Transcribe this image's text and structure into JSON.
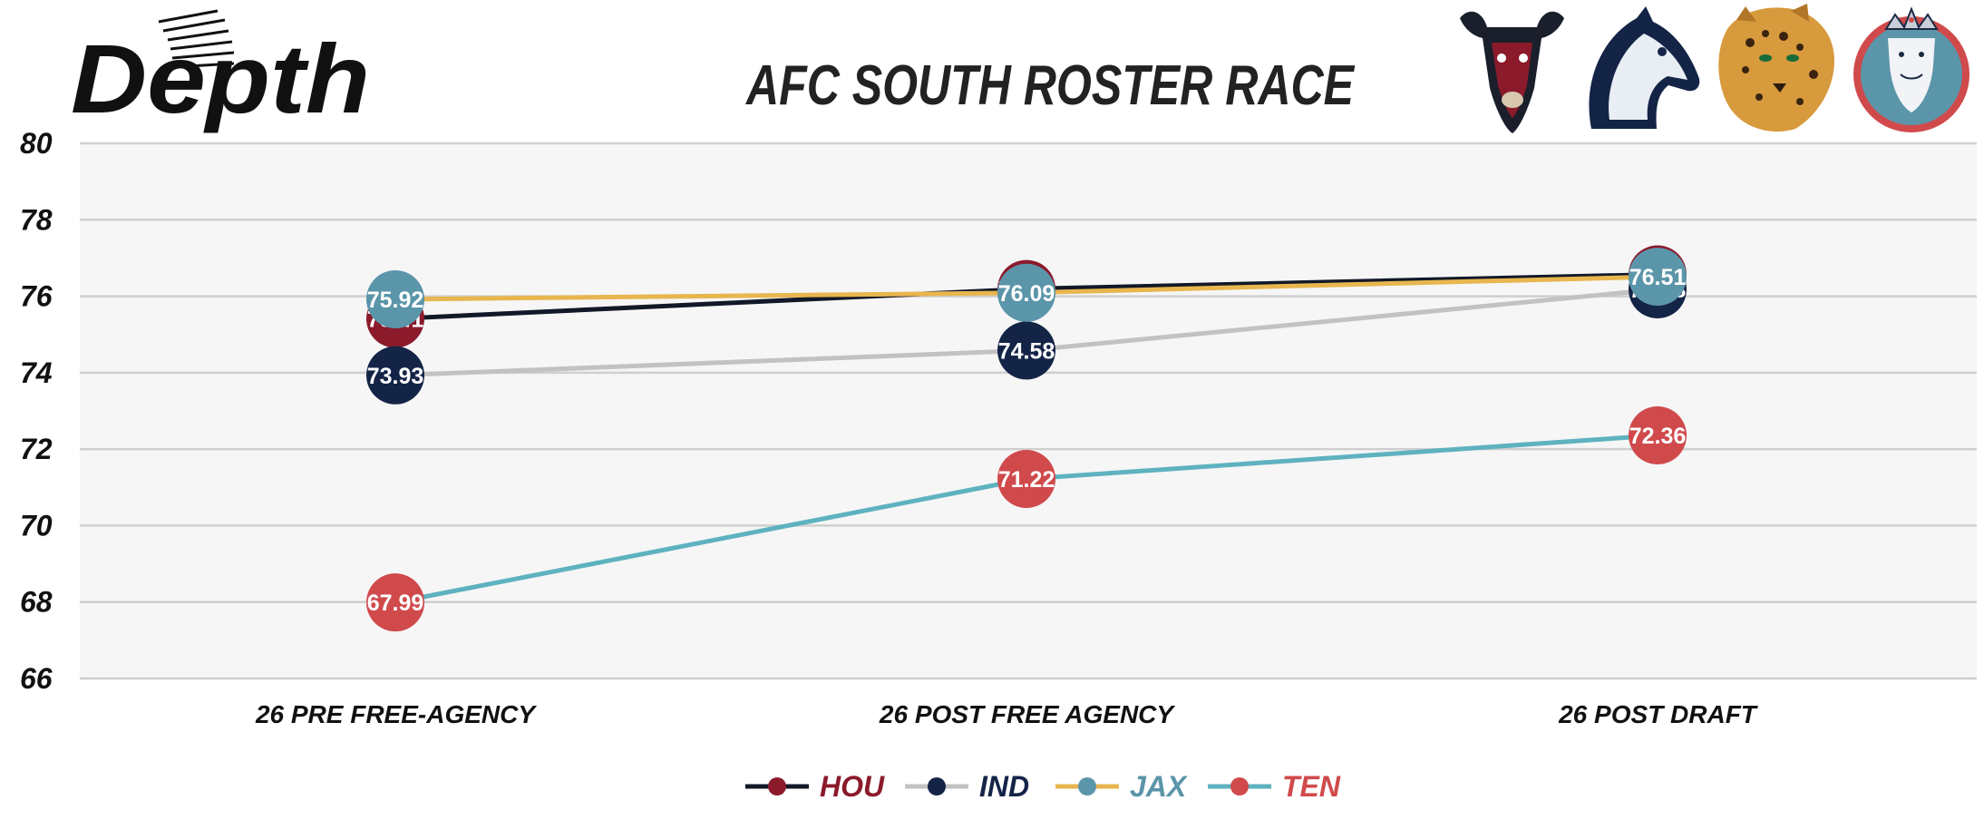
{
  "brand": {
    "name": "Depth"
  },
  "team_logos": [
    {
      "team": "HOU",
      "icon": "bull-logo-icon"
    },
    {
      "team": "IND",
      "icon": "horse-logo-icon"
    },
    {
      "team": "JAX",
      "icon": "jaguar-logo-icon"
    },
    {
      "team": "TEN",
      "icon": "titan-logo-icon"
    }
  ],
  "chart_data": {
    "type": "line",
    "title": "AFC SOUTH ROSTER RACE",
    "categories": [
      "26 PRE FREE-AGENCY",
      "26 POST FREE AGENCY",
      "26 POST DRAFT"
    ],
    "ylim": [
      66,
      80
    ],
    "yticks": [
      66,
      68,
      70,
      72,
      74,
      76,
      78,
      80
    ],
    "grid": true,
    "legend_position": "bottom",
    "series": [
      {
        "name": "HOU",
        "values": [
          75.41,
          76.19,
          76.57
        ],
        "line_color": "#111827",
        "marker_color": "#8b1a2b",
        "label_color": "#8b1a2b"
      },
      {
        "name": "IND",
        "values": [
          73.93,
          74.58,
          76.18
        ],
        "line_color": "#c2c2c2",
        "marker_color": "#142447",
        "label_color": "#142447"
      },
      {
        "name": "JAX",
        "values": [
          75.92,
          76.09,
          76.51
        ],
        "line_color": "#e8b64f",
        "marker_color": "#5b95aa",
        "label_color": "#5b95aa"
      },
      {
        "name": "TEN",
        "values": [
          67.99,
          71.22,
          72.36
        ],
        "line_color": "#5eb2c0",
        "marker_color": "#d04a4c",
        "label_color": "#d04a4c"
      }
    ]
  }
}
